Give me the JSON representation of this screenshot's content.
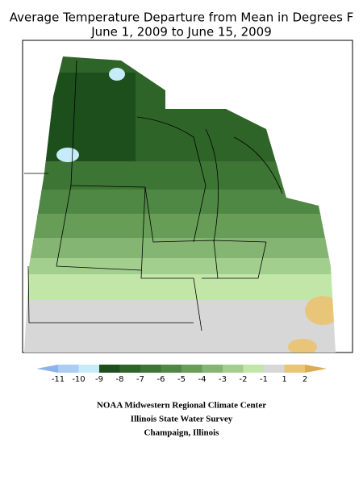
{
  "header": {
    "title": "Average Temperature Departure from Mean in Degrees F",
    "subtitle": "June 1, 2009 to June 15, 2009"
  },
  "legend": {
    "labels": [
      -11,
      -10,
      -9,
      -8,
      -7,
      -6,
      -5,
      -4,
      -3,
      -2,
      -1,
      1,
      2
    ],
    "colors": [
      "#8cb4ec",
      "#a9cdf4",
      "#c6ecfb",
      "#1d4f1c",
      "#2f6429",
      "#3d7535",
      "#4f8744",
      "#689d58",
      "#84b572",
      "#a2cf8e",
      "#c2e6a8",
      "#d7d7d7",
      "#e9c57a",
      "#dcaa52"
    ]
  },
  "footer": {
    "lines": [
      "NOAA Midwestern Regional Climate Center",
      "Illinois State Water Survey",
      "Champaign, Illinois"
    ]
  }
}
